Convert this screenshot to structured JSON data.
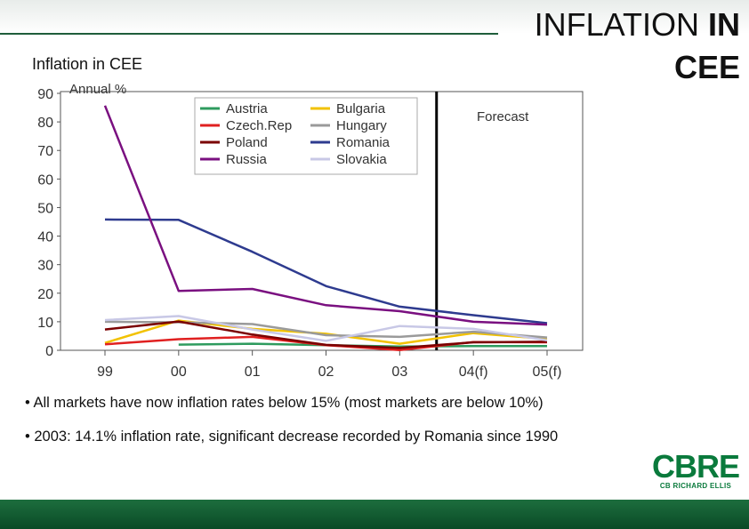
{
  "slide": {
    "title_regular": "INFLATION ",
    "title_bold_1": "IN",
    "title_bold_2": "CEE",
    "subtitle": "Inflation in CEE",
    "bullets": [
      "• All markets have now inflation rates below 15% (most markets are below 10%)",
      "• 2003: 14.1% inflation rate, significant decrease recorded by Romania since 1990"
    ],
    "logo_main": "CBRE",
    "logo_sub": "CB RICHARD ELLIS"
  },
  "colors": {
    "Austria": "#2e9b5e",
    "Bulgaria": "#f2c200",
    "Czech.Rep": "#e02020",
    "Hungary": "#9a9a9a",
    "Poland": "#7a0000",
    "Romania": "#2e3b8f",
    "Russia": "#7a1080",
    "Slovakia": "#c8c8e6"
  },
  "chart_data": {
    "type": "line",
    "title": "",
    "ylabel": "Annual %",
    "xlabel": "",
    "categories": [
      "99",
      "00",
      "01",
      "02",
      "03",
      "04(f)",
      "05(f)"
    ],
    "ylim": [
      0,
      90
    ],
    "yticks": [
      0,
      10,
      20,
      30,
      40,
      50,
      60,
      70,
      80,
      90
    ],
    "forecast_label": "Forecast",
    "legend_position": "top-center",
    "series": [
      {
        "name": "Austria",
        "values": [
          null,
          2,
          2.3,
          1.8,
          1.3,
          1.5,
          1.5
        ]
      },
      {
        "name": "Bulgaria",
        "values": [
          2.6,
          10.4,
          7.5,
          5.8,
          2.3,
          6,
          4
        ]
      },
      {
        "name": "Czech.Rep",
        "values": [
          2.1,
          3.9,
          4.7,
          1.8,
          0.1,
          2.9,
          2.8
        ]
      },
      {
        "name": "Hungary",
        "values": [
          10,
          9.8,
          9.2,
          5.3,
          4.7,
          6.5,
          4.5
        ]
      },
      {
        "name": "Poland",
        "values": [
          7.3,
          10.1,
          5.5,
          1.9,
          0.8,
          2.8,
          3
        ]
      },
      {
        "name": "Romania",
        "values": [
          45.8,
          45.7,
          34.5,
          22.5,
          15.3,
          12.3,
          9.5
        ]
      },
      {
        "name": "Russia",
        "values": [
          85.7,
          20.8,
          21.5,
          15.8,
          13.7,
          10,
          9
        ]
      },
      {
        "name": "Slovakia",
        "values": [
          10.6,
          12,
          7.3,
          3.3,
          8.5,
          7.5,
          3.5
        ]
      }
    ]
  }
}
